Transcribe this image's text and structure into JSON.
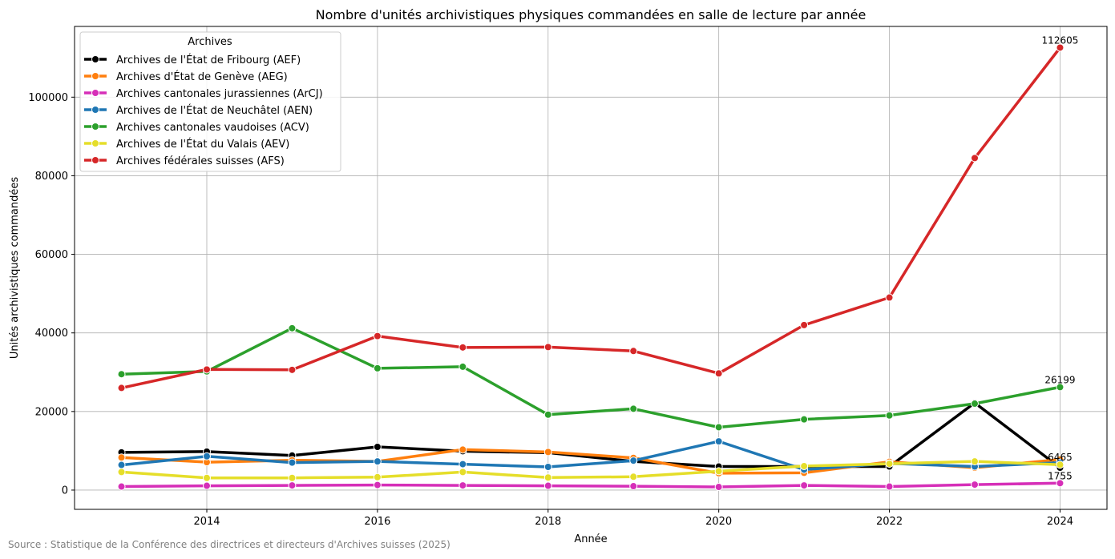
{
  "chart_data": {
    "type": "line",
    "title": "Nombre d'unités archivistiques physiques commandées en salle de lecture par année",
    "xlabel": "Année",
    "ylabel": "Unités archivistiques commandées",
    "x": [
      2013,
      2014,
      2015,
      2016,
      2017,
      2018,
      2019,
      2020,
      2021,
      2022,
      2023,
      2024
    ],
    "xlim": [
      2012.45,
      2024.55
    ],
    "ylim": [
      -4900,
      118000
    ],
    "xticks": [
      "2014",
      "2016",
      "2018",
      "2020",
      "2022",
      "2024"
    ],
    "yticks": [
      "0",
      "20000",
      "40000",
      "60000",
      "80000",
      "100000"
    ],
    "grid": true,
    "legend": {
      "title": "Archives",
      "placement": "top-left"
    },
    "series": [
      {
        "name": "Archives de l'État de Fribourg (AEF)",
        "color": "#000000",
        "values": [
          9600,
          9800,
          8800,
          11000,
          9900,
          9500,
          7300,
          6000,
          6000,
          6000,
          22200,
          5700
        ]
      },
      {
        "name": "Archives d'État de Genève (AEG)",
        "color": "#ff7f0e",
        "values": [
          8300,
          7100,
          7600,
          7300,
          10300,
          9700,
          8200,
          4300,
          4400,
          7200,
          5700,
          7800
        ]
      },
      {
        "name": "Archives cantonales jurassiennes (ArCJ)",
        "color": "#d62fb8",
        "values": [
          900,
          1100,
          1200,
          1300,
          1200,
          1100,
          1000,
          800,
          1200,
          900,
          1400,
          1755
        ]
      },
      {
        "name": "Archives de l'État de Neuchâtel (AEN)",
        "color": "#1f77b4",
        "values": [
          6400,
          8600,
          7000,
          7300,
          6600,
          5900,
          7500,
          12400,
          5200,
          6800,
          6000,
          7000
        ]
      },
      {
        "name": "Archives cantonales vaudoises (ACV)",
        "color": "#2ca02c",
        "values": [
          29500,
          30200,
          41200,
          31000,
          31400,
          19200,
          20700,
          16000,
          18000,
          19000,
          22000,
          26199
        ]
      },
      {
        "name": "Archives de l'État du Valais (AEV)",
        "color": "#e5de2a",
        "values": [
          4600,
          3100,
          3100,
          3300,
          4600,
          3200,
          3400,
          4800,
          6100,
          6700,
          7300,
          6465
        ]
      },
      {
        "name": "Archives fédérales suisses (AFS)",
        "color": "#d62728",
        "values": [
          26000,
          30700,
          30600,
          39200,
          36300,
          36400,
          35400,
          29700,
          42000,
          49000,
          84500,
          112605
        ]
      }
    ],
    "annotations": [
      {
        "text": "112605",
        "x": 2024,
        "y": 112605
      },
      {
        "text": "26199",
        "x": 2024,
        "y": 26199
      },
      {
        "text": "6465",
        "x": 2024,
        "y": 6465
      },
      {
        "text": "1755",
        "x": 2024,
        "y": 1755
      }
    ]
  },
  "source": "Source : Statistique de la Conférence des directrices et directeurs d'Archives suisses (2025)"
}
